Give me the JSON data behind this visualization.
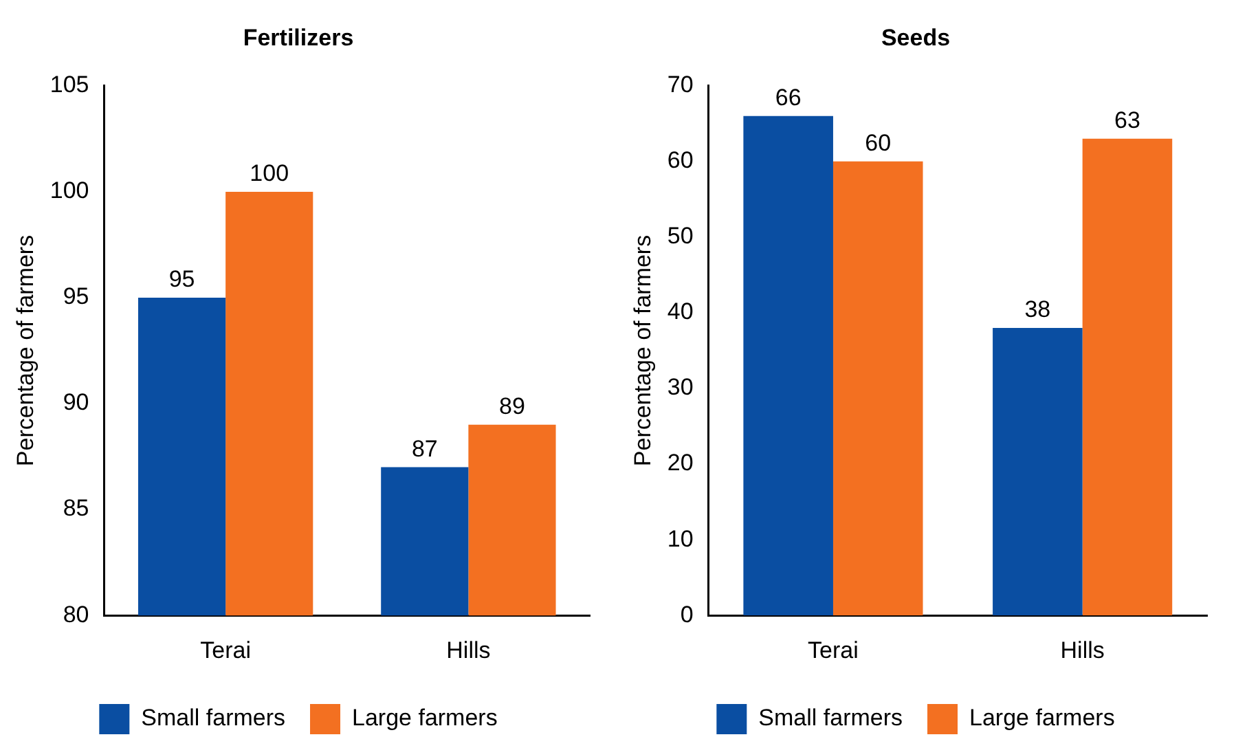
{
  "chart_data": [
    {
      "type": "bar",
      "title": "Fertilizers",
      "ylabel": "Percentage of farmers",
      "categories": [
        "Terai",
        "Hills"
      ],
      "series": [
        {
          "name": "Small farmers",
          "color": "#0a4ea2",
          "values": [
            95,
            87
          ]
        },
        {
          "name": "Large farmers",
          "color": "#f37021",
          "values": [
            100,
            89
          ]
        }
      ],
      "ylim": [
        80,
        105
      ],
      "yticks": [
        80,
        85,
        90,
        95,
        100,
        105
      ],
      "legend": "bottom",
      "data_labels": true
    },
    {
      "type": "bar",
      "title": "Seeds",
      "ylabel": "Percentage of farmers",
      "categories": [
        "Terai",
        "Hills"
      ],
      "series": [
        {
          "name": "Small farmers",
          "color": "#0a4ea2",
          "values": [
            66,
            38
          ]
        },
        {
          "name": "Large farmers",
          "color": "#f37021",
          "values": [
            60,
            63
          ]
        }
      ],
      "ylim": [
        0,
        70
      ],
      "yticks": [
        0,
        10,
        20,
        30,
        40,
        50,
        60,
        70
      ],
      "legend": "bottom",
      "data_labels": true
    }
  ]
}
